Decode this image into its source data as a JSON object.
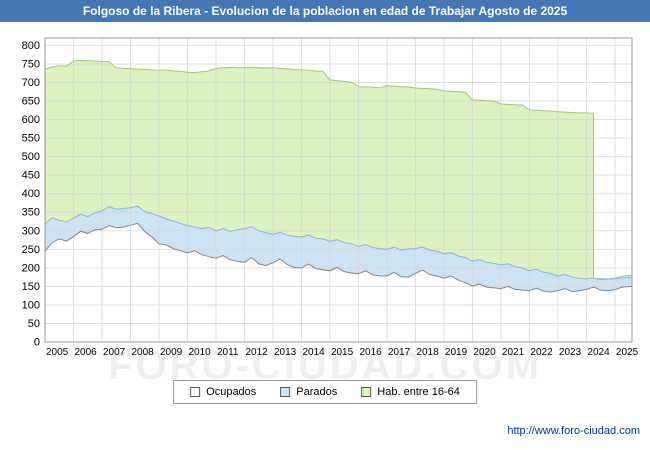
{
  "title_bar": {
    "text": "Folgoso de la Ribera - Evolucion de la poblacion en edad de Trabajar Agosto de 2025",
    "bg_color": "#4576b5",
    "text_color": "#ffffff"
  },
  "watermark": "FORO-CIUDAD.COM",
  "footer": {
    "url": "http://www.foro-ciudad.com"
  },
  "chart_data": {
    "type": "area",
    "title": "Folgoso de la Ribera - Evolucion de la poblacion en edad de Trabajar Agosto de 2025",
    "xlabel": "",
    "ylabel": "",
    "grid": true,
    "legend_position": "bottom",
    "x_axis": {
      "min": 2005,
      "max": 2025.6,
      "ticks": [
        2005,
        2006,
        2007,
        2008,
        2009,
        2010,
        2011,
        2012,
        2013,
        2014,
        2015,
        2016,
        2017,
        2018,
        2019,
        2020,
        2021,
        2022,
        2023,
        2024,
        2025
      ]
    },
    "y_axis": {
      "min": 0,
      "max": 820,
      "ticks": [
        0,
        50,
        100,
        150,
        200,
        250,
        300,
        350,
        400,
        450,
        500,
        550,
        600,
        650,
        700,
        750,
        800
      ]
    },
    "colors": {
      "grid": "#d6d6d6",
      "plot_border": "#999999",
      "plot_bg": "#ffffff"
    },
    "legend": [
      {
        "label": "Ocupados",
        "swatch_fill": "#ffffff"
      },
      {
        "label": "Parados",
        "swatch_fill": "#cde3f4"
      },
      {
        "label": "Hab. entre 16-64",
        "swatch_fill": "#dcf2c0"
      }
    ],
    "series": [
      {
        "name": "Hab. entre 16-64",
        "fill": "#dcf2c0",
        "stroke": "#a3c585",
        "points": [
          [
            2005.0,
            735
          ],
          [
            2005.25,
            742
          ],
          [
            2005.5,
            745
          ],
          [
            2005.75,
            744
          ],
          [
            2006.0,
            758
          ],
          [
            2006.25,
            760
          ],
          [
            2006.5,
            759
          ],
          [
            2006.75,
            758
          ],
          [
            2007.0,
            757
          ],
          [
            2007.25,
            756
          ],
          [
            2007.5,
            740
          ],
          [
            2007.75,
            738
          ],
          [
            2008.0,
            737
          ],
          [
            2008.25,
            736
          ],
          [
            2008.5,
            735
          ],
          [
            2008.75,
            734
          ],
          [
            2009.0,
            733
          ],
          [
            2009.25,
            734
          ],
          [
            2009.5,
            731
          ],
          [
            2009.75,
            730
          ],
          [
            2010.0,
            728
          ],
          [
            2010.25,
            727
          ],
          [
            2010.5,
            729
          ],
          [
            2010.75,
            731
          ],
          [
            2011.0,
            738
          ],
          [
            2011.25,
            740
          ],
          [
            2011.5,
            741
          ],
          [
            2011.75,
            740
          ],
          [
            2012.0,
            740
          ],
          [
            2012.25,
            741
          ],
          [
            2012.5,
            740
          ],
          [
            2012.75,
            739
          ],
          [
            2013.0,
            740
          ],
          [
            2013.25,
            738
          ],
          [
            2013.5,
            737
          ],
          [
            2013.75,
            735
          ],
          [
            2014.0,
            734
          ],
          [
            2014.25,
            733
          ],
          [
            2014.5,
            731
          ],
          [
            2014.75,
            730
          ],
          [
            2015.0,
            707
          ],
          [
            2015.25,
            705
          ],
          [
            2015.5,
            703
          ],
          [
            2015.75,
            701
          ],
          [
            2016.0,
            689
          ],
          [
            2016.25,
            688
          ],
          [
            2016.5,
            687
          ],
          [
            2016.75,
            686
          ],
          [
            2017.0,
            691
          ],
          [
            2017.25,
            690
          ],
          [
            2017.5,
            689
          ],
          [
            2017.75,
            688
          ],
          [
            2018.0,
            685
          ],
          [
            2018.25,
            684
          ],
          [
            2018.5,
            683
          ],
          [
            2018.75,
            682
          ],
          [
            2019.0,
            677
          ],
          [
            2019.25,
            676
          ],
          [
            2019.5,
            675
          ],
          [
            2019.75,
            674
          ],
          [
            2020.0,
            653
          ],
          [
            2020.25,
            652
          ],
          [
            2020.5,
            651
          ],
          [
            2020.75,
            650
          ],
          [
            2021.0,
            642
          ],
          [
            2021.25,
            641
          ],
          [
            2021.5,
            640
          ],
          [
            2021.75,
            639
          ],
          [
            2022.0,
            626
          ],
          [
            2022.25,
            625
          ],
          [
            2022.5,
            624
          ],
          [
            2022.75,
            623
          ],
          [
            2023.0,
            621
          ],
          [
            2023.25,
            620
          ],
          [
            2023.5,
            619
          ],
          [
            2023.75,
            618
          ],
          [
            2024.0,
            618
          ],
          [
            2024.25,
            617
          ],
          [
            2024.25,
            172
          ],
          [
            2024.5,
            171
          ],
          [
            2024.75,
            170
          ],
          [
            2025.0,
            170
          ],
          [
            2025.25,
            172
          ],
          [
            2025.6,
            174
          ]
        ]
      },
      {
        "name": "Parados",
        "fill": "#cde3f4",
        "stroke": "#8fb4d9",
        "points": [
          [
            2005.0,
            318
          ],
          [
            2005.25,
            335
          ],
          [
            2005.5,
            328
          ],
          [
            2005.75,
            324
          ],
          [
            2006.0,
            334
          ],
          [
            2006.25,
            345
          ],
          [
            2006.5,
            338
          ],
          [
            2006.75,
            348
          ],
          [
            2007.0,
            354
          ],
          [
            2007.25,
            365
          ],
          [
            2007.5,
            358
          ],
          [
            2007.75,
            360
          ],
          [
            2008.0,
            362
          ],
          [
            2008.25,
            366
          ],
          [
            2008.5,
            352
          ],
          [
            2008.75,
            346
          ],
          [
            2009.0,
            340
          ],
          [
            2009.25,
            332
          ],
          [
            2009.5,
            326
          ],
          [
            2009.75,
            320
          ],
          [
            2010.0,
            314
          ],
          [
            2010.25,
            310
          ],
          [
            2010.5,
            306
          ],
          [
            2010.75,
            309
          ],
          [
            2011.0,
            300
          ],
          [
            2011.25,
            306
          ],
          [
            2011.5,
            298
          ],
          [
            2011.75,
            303
          ],
          [
            2012.0,
            306
          ],
          [
            2012.25,
            311
          ],
          [
            2012.5,
            300
          ],
          [
            2012.75,
            295
          ],
          [
            2013.0,
            290
          ],
          [
            2013.25,
            296
          ],
          [
            2013.5,
            288
          ],
          [
            2013.75,
            285
          ],
          [
            2014.0,
            283
          ],
          [
            2014.25,
            289
          ],
          [
            2014.5,
            280
          ],
          [
            2014.75,
            278
          ],
          [
            2015.0,
            272
          ],
          [
            2015.25,
            276
          ],
          [
            2015.5,
            268
          ],
          [
            2015.75,
            265
          ],
          [
            2016.0,
            258
          ],
          [
            2016.25,
            263
          ],
          [
            2016.5,
            255
          ],
          [
            2016.75,
            252
          ],
          [
            2017.0,
            250
          ],
          [
            2017.25,
            256
          ],
          [
            2017.5,
            248
          ],
          [
            2017.75,
            251
          ],
          [
            2018.0,
            252
          ],
          [
            2018.25,
            256
          ],
          [
            2018.5,
            248
          ],
          [
            2018.75,
            245
          ],
          [
            2019.0,
            238
          ],
          [
            2019.25,
            241
          ],
          [
            2019.5,
            232
          ],
          [
            2019.75,
            228
          ],
          [
            2020.0,
            218
          ],
          [
            2020.25,
            222
          ],
          [
            2020.5,
            215
          ],
          [
            2020.75,
            212
          ],
          [
            2021.0,
            208
          ],
          [
            2021.25,
            211
          ],
          [
            2021.5,
            203
          ],
          [
            2021.75,
            200
          ],
          [
            2022.0,
            192
          ],
          [
            2022.25,
            196
          ],
          [
            2022.5,
            188
          ],
          [
            2022.75,
            185
          ],
          [
            2023.0,
            178
          ],
          [
            2023.25,
            182
          ],
          [
            2023.5,
            175
          ],
          [
            2023.75,
            172
          ],
          [
            2024.0,
            170
          ],
          [
            2024.25,
            173
          ],
          [
            2024.5,
            168
          ],
          [
            2024.75,
            170
          ],
          [
            2025.0,
            172
          ],
          [
            2025.25,
            177
          ],
          [
            2025.6,
            180
          ]
        ]
      },
      {
        "name": "Ocupados",
        "fill": "#ffffff",
        "stroke": "#858585",
        "points": [
          [
            2005.0,
            245
          ],
          [
            2005.25,
            268
          ],
          [
            2005.5,
            278
          ],
          [
            2005.75,
            272
          ],
          [
            2006.0,
            284
          ],
          [
            2006.25,
            299
          ],
          [
            2006.5,
            293
          ],
          [
            2006.75,
            303
          ],
          [
            2007.0,
            304
          ],
          [
            2007.25,
            314
          ],
          [
            2007.5,
            308
          ],
          [
            2007.75,
            310
          ],
          [
            2008.0,
            315
          ],
          [
            2008.25,
            320
          ],
          [
            2008.5,
            298
          ],
          [
            2008.75,
            283
          ],
          [
            2009.0,
            265
          ],
          [
            2009.25,
            262
          ],
          [
            2009.5,
            252
          ],
          [
            2009.75,
            246
          ],
          [
            2010.0,
            240
          ],
          [
            2010.25,
            246
          ],
          [
            2010.5,
            236
          ],
          [
            2010.75,
            230
          ],
          [
            2011.0,
            226
          ],
          [
            2011.25,
            233
          ],
          [
            2011.5,
            222
          ],
          [
            2011.75,
            218
          ],
          [
            2012.0,
            215
          ],
          [
            2012.25,
            228
          ],
          [
            2012.5,
            211
          ],
          [
            2012.75,
            206
          ],
          [
            2013.0,
            214
          ],
          [
            2013.25,
            224
          ],
          [
            2013.5,
            209
          ],
          [
            2013.75,
            201
          ],
          [
            2014.0,
            200
          ],
          [
            2014.25,
            210
          ],
          [
            2014.5,
            198
          ],
          [
            2014.75,
            195
          ],
          [
            2015.0,
            192
          ],
          [
            2015.25,
            201
          ],
          [
            2015.5,
            190
          ],
          [
            2015.75,
            186
          ],
          [
            2016.0,
            184
          ],
          [
            2016.25,
            192
          ],
          [
            2016.5,
            181
          ],
          [
            2016.75,
            178
          ],
          [
            2017.0,
            178
          ],
          [
            2017.25,
            188
          ],
          [
            2017.5,
            176
          ],
          [
            2017.75,
            175
          ],
          [
            2018.0,
            185
          ],
          [
            2018.25,
            194
          ],
          [
            2018.5,
            182
          ],
          [
            2018.75,
            178
          ],
          [
            2019.0,
            172
          ],
          [
            2019.25,
            178
          ],
          [
            2019.5,
            167
          ],
          [
            2019.75,
            160
          ],
          [
            2020.0,
            151
          ],
          [
            2020.25,
            156
          ],
          [
            2020.5,
            148
          ],
          [
            2020.75,
            146
          ],
          [
            2021.0,
            144
          ],
          [
            2021.25,
            150
          ],
          [
            2021.5,
            142
          ],
          [
            2021.75,
            140
          ],
          [
            2022.0,
            139
          ],
          [
            2022.25,
            145
          ],
          [
            2022.5,
            137
          ],
          [
            2022.75,
            135
          ],
          [
            2023.0,
            139
          ],
          [
            2023.25,
            144
          ],
          [
            2023.5,
            136
          ],
          [
            2023.75,
            138
          ],
          [
            2024.0,
            142
          ],
          [
            2024.25,
            148
          ],
          [
            2024.5,
            140
          ],
          [
            2024.75,
            138
          ],
          [
            2025.0,
            141
          ],
          [
            2025.25,
            148
          ],
          [
            2025.6,
            150
          ]
        ]
      }
    ]
  }
}
